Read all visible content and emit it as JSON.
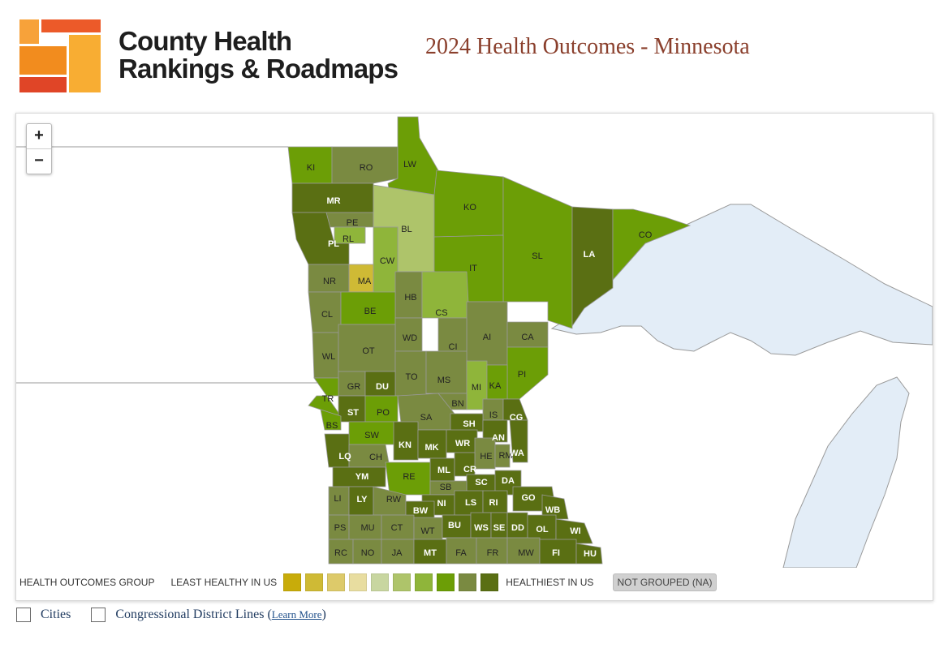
{
  "header": {
    "brand_line1": "County Health",
    "brand_line2": "Rankings & Roadmaps",
    "title": "2024 Health Outcomes - Minnesota"
  },
  "zoom": {
    "in_label": "+",
    "out_label": "−"
  },
  "colors": {
    "water": "#e3edf7",
    "state_outline": "#9a9a9a",
    "palette": [
      "#c8ac0a",
      "#cfba35",
      "#ddca6a",
      "#e8dda0",
      "#c8d6a0",
      "#aec46a",
      "#8fb53a",
      "#6c9e06",
      "#7a8a41",
      "#5a6f13"
    ]
  },
  "legend": {
    "group_label": "HEALTH OUTCOMES GROUP",
    "least_label": "LEAST HEALTHY IN US",
    "healthiest_label": "HEALTHIEST IN US",
    "not_grouped_label": "NOT GROUPED (NA)"
  },
  "options": {
    "cities_label": "Cities",
    "congressional_label": "Congressional District Lines",
    "learn_more_label": "Learn More"
  },
  "counties": [
    {
      "code": "KI",
      "group": 7
    },
    {
      "code": "RO",
      "group": 8
    },
    {
      "code": "LW",
      "group": 7
    },
    {
      "code": "MR",
      "group": 9
    },
    {
      "code": "PE",
      "group": 8
    },
    {
      "code": "RL",
      "group": 6
    },
    {
      "code": "PL",
      "group": 9
    },
    {
      "code": "BL",
      "group": 5
    },
    {
      "code": "KO",
      "group": 7
    },
    {
      "code": "SL",
      "group": 7
    },
    {
      "code": "LA",
      "group": 9
    },
    {
      "code": "CO",
      "group": 7
    },
    {
      "code": "IT",
      "group": 7
    },
    {
      "code": "CW",
      "group": 6
    },
    {
      "code": "NR",
      "group": 8
    },
    {
      "code": "MA",
      "group": 1
    },
    {
      "code": "HB",
      "group": 8
    },
    {
      "code": "CS",
      "group": 6
    },
    {
      "code": "CL",
      "group": 8
    },
    {
      "code": "BE",
      "group": 7
    },
    {
      "code": "WD",
      "group": 8
    },
    {
      "code": "AI",
      "group": 8
    },
    {
      "code": "CA",
      "group": 8
    },
    {
      "code": "CI",
      "group": 8
    },
    {
      "code": "WL",
      "group": 8
    },
    {
      "code": "OT",
      "group": 8
    },
    {
      "code": "TO",
      "group": 8
    },
    {
      "code": "MS",
      "group": 8
    },
    {
      "code": "PI",
      "group": 7
    },
    {
      "code": "MI",
      "group": 6
    },
    {
      "code": "KA",
      "group": 7
    },
    {
      "code": "GR",
      "group": 8
    },
    {
      "code": "DU",
      "group": 9
    },
    {
      "code": "TR",
      "group": 7
    },
    {
      "code": "BN",
      "group": 8
    },
    {
      "code": "ST",
      "group": 9
    },
    {
      "code": "PO",
      "group": 7
    },
    {
      "code": "SA",
      "group": 8
    },
    {
      "code": "IS",
      "group": 8
    },
    {
      "code": "CG",
      "group": 9
    },
    {
      "code": "BS",
      "group": 7
    },
    {
      "code": "SH",
      "group": 9
    },
    {
      "code": "SW",
      "group": 7
    },
    {
      "code": "AN",
      "group": 9
    },
    {
      "code": "KN",
      "group": 9
    },
    {
      "code": "MK",
      "group": 9
    },
    {
      "code": "WR",
      "group": 9
    },
    {
      "code": "LQ",
      "group": 9
    },
    {
      "code": "CH",
      "group": 8
    },
    {
      "code": "HE",
      "group": 8
    },
    {
      "code": "RM",
      "group": 8
    },
    {
      "code": "WA",
      "group": 9
    },
    {
      "code": "YM",
      "group": 9
    },
    {
      "code": "ML",
      "group": 9
    },
    {
      "code": "CR",
      "group": 9
    },
    {
      "code": "RE",
      "group": 7
    },
    {
      "code": "SC",
      "group": 9
    },
    {
      "code": "DA",
      "group": 9
    },
    {
      "code": "SB",
      "group": 8
    },
    {
      "code": "LI",
      "group": 8
    },
    {
      "code": "LY",
      "group": 9
    },
    {
      "code": "RW",
      "group": 8
    },
    {
      "code": "GO",
      "group": 9
    },
    {
      "code": "NI",
      "group": 9
    },
    {
      "code": "LS",
      "group": 9
    },
    {
      "code": "RI",
      "group": 9
    },
    {
      "code": "WB",
      "group": 9
    },
    {
      "code": "BW",
      "group": 9
    },
    {
      "code": "PS",
      "group": 8
    },
    {
      "code": "MU",
      "group": 8
    },
    {
      "code": "CT",
      "group": 8
    },
    {
      "code": "WT",
      "group": 8
    },
    {
      "code": "BU",
      "group": 9
    },
    {
      "code": "WS",
      "group": 9
    },
    {
      "code": "SE",
      "group": 9
    },
    {
      "code": "DD",
      "group": 9
    },
    {
      "code": "OL",
      "group": 9
    },
    {
      "code": "WI",
      "group": 9
    },
    {
      "code": "RC",
      "group": 8
    },
    {
      "code": "NO",
      "group": 8
    },
    {
      "code": "JA",
      "group": 8
    },
    {
      "code": "MT",
      "group": 9
    },
    {
      "code": "FA",
      "group": 8
    },
    {
      "code": "FR",
      "group": 8
    },
    {
      "code": "MW",
      "group": 8
    },
    {
      "code": "FI",
      "group": 9
    },
    {
      "code": "HU",
      "group": 9
    }
  ]
}
